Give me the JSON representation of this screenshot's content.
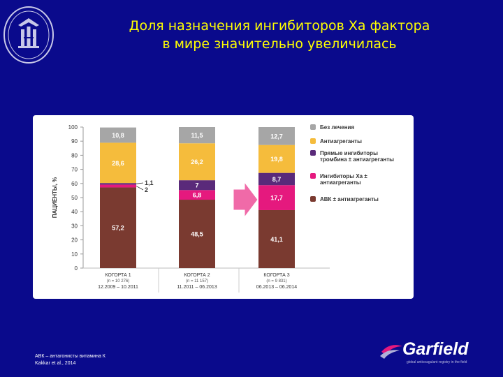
{
  "title": {
    "line1": "Доля назначения ингибиторов Ха фактора",
    "line2": "в мире значительно увеличилась"
  },
  "footnote": {
    "line1": "АВК – антагонисты витамина К",
    "line2": "Kakkar et al., 2014"
  },
  "logo_garfield": {
    "wordmark": "Garfield",
    "tagline": "global anticoagulant registry in the field"
  },
  "colors": {
    "background": "#0a0a8c",
    "title": "#ffff00",
    "no_treatment": "#a6a6a6",
    "antiplatelet": "#f5bc3c",
    "direct_thrombin": "#5a2a7a",
    "xa_inhibitors": "#e5197e",
    "vka": "#7a3a30",
    "arrow": "#f06aa8"
  },
  "chart_data": {
    "type": "bar",
    "stacked": true,
    "ylabel": "ПАЦИЕНТЫ, %",
    "ylim": [
      0,
      100
    ],
    "yticks": [
      "0",
      "10",
      "20",
      "30",
      "40",
      "50",
      "60",
      "70",
      "80",
      "90",
      "100"
    ],
    "categories": [
      "КОГОРТА 1",
      "КОГОРТА 2",
      "КОГОРТА 3"
    ],
    "category_n": [
      "(n = 10 276)",
      "(n = 11 157)",
      "(n = 9 831)"
    ],
    "category_dates": [
      "12.2009 – 10.2011",
      "11.2011 – 06.2013",
      "06.2013 – 06.2014"
    ],
    "series": [
      {
        "name": "АВК ± антиагреганты",
        "color": "#7a3a30",
        "values": [
          57.2,
          48.5,
          41.1
        ],
        "labels": [
          "57,2",
          "48,5",
          "41,1"
        ]
      },
      {
        "name": "Ингибиторы Ха ± антиагреганты",
        "color": "#e5197e",
        "values": [
          2,
          6.8,
          17.7
        ],
        "labels": [
          "2",
          "6,8",
          "17,7"
        ]
      },
      {
        "name": "Прямые ингибиторы тромбина ± антиагреганты",
        "color": "#5a2a7a",
        "values": [
          1.1,
          7,
          8.7
        ],
        "labels": [
          "1,1",
          "7",
          "8,7"
        ]
      },
      {
        "name": "Антиагреганты",
        "color": "#f5bc3c",
        "values": [
          28.6,
          26.2,
          19.8
        ],
        "labels": [
          "28,6",
          "26,2",
          "19,8"
        ]
      },
      {
        "name": "Без лечения",
        "color": "#a6a6a6",
        "values": [
          10.8,
          11.5,
          12.7
        ],
        "labels": [
          "10,8",
          "11,5",
          "12,7"
        ]
      }
    ],
    "legend": [
      {
        "line1": "Без лечения",
        "line2": "",
        "color": "#a6a6a6"
      },
      {
        "line1": "Антиагреганты",
        "line2": "",
        "color": "#f5bc3c"
      },
      {
        "line1": "Прямые ингибиторы",
        "line2": "тромбина ± антиагреганты",
        "color": "#5a2a7a"
      },
      {
        "line1": "Ингибиторы Ха ±",
        "line2": "антиагреганты",
        "color": "#e5197e"
      },
      {
        "line1": "АВК ± антиагреганты",
        "line2": "",
        "color": "#7a3a30"
      }
    ],
    "legend_position": "right",
    "grid": false
  }
}
